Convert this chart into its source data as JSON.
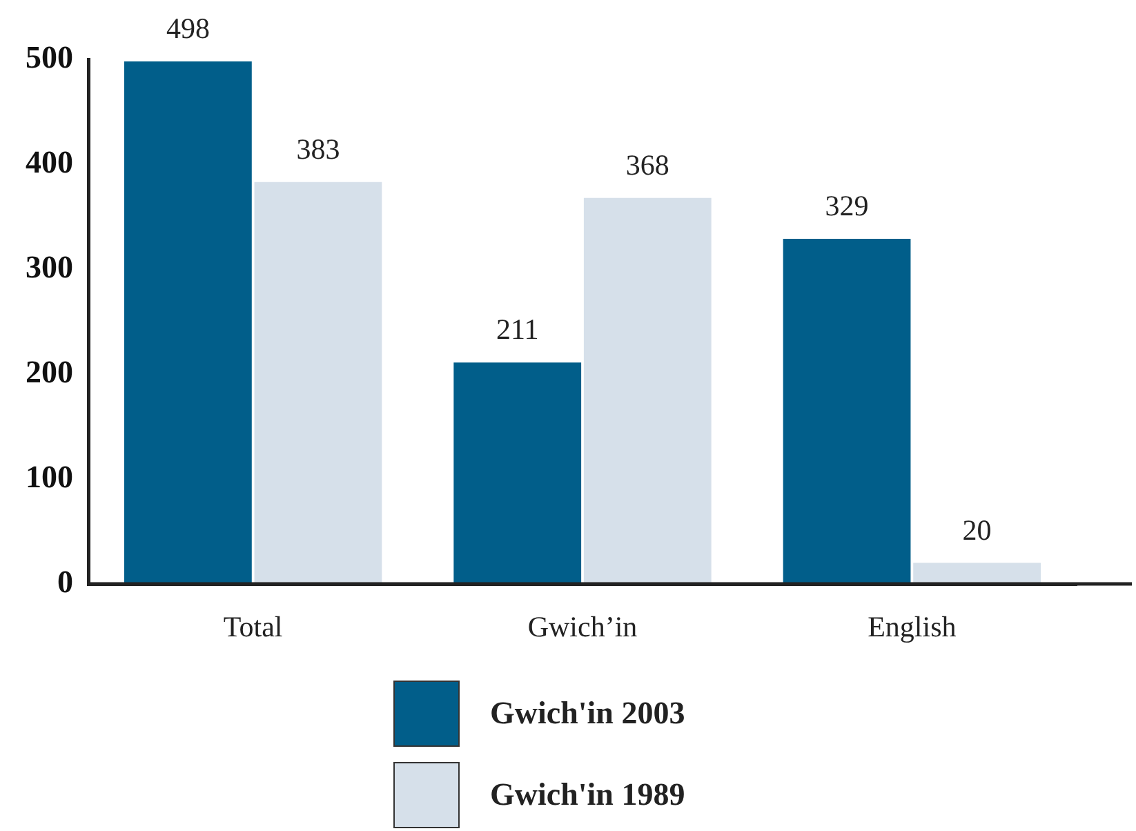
{
  "chart_data": {
    "type": "bar",
    "categories": [
      "Total",
      "Gwich’in",
      "English"
    ],
    "series": [
      {
        "name": "Gwich'in 2003",
        "color": "#015e8a",
        "values": [
          498,
          211,
          329
        ]
      },
      {
        "name": "Gwich'in 1989",
        "color": "#d6e0ea",
        "values": [
          383,
          368,
          20
        ]
      }
    ],
    "ylim": [
      0,
      500
    ],
    "yticks": [
      0,
      100,
      200,
      300,
      400,
      500
    ],
    "data_labels": true,
    "legend": "bottom",
    "grid": false
  }
}
